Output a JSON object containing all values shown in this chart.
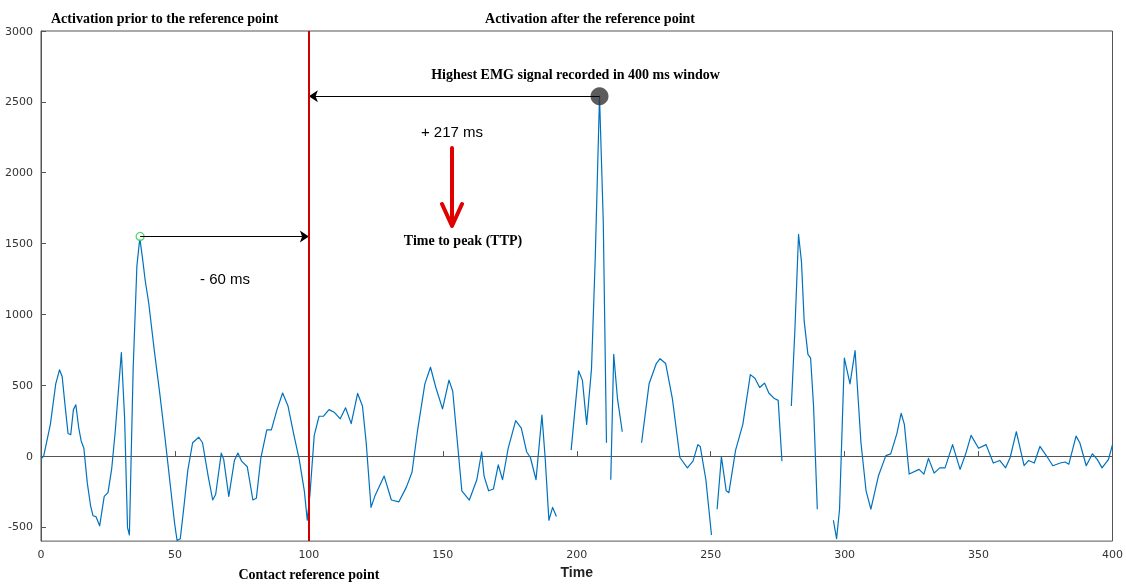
{
  "chart_data": {
    "type": "line",
    "xlabel": "Time",
    "xlim": [
      0,
      400
    ],
    "xticks": [
      0,
      50,
      100,
      150,
      200,
      250,
      300,
      350,
      400
    ],
    "ylim": [
      -600,
      3000
    ],
    "yticks": [
      -500,
      0,
      500,
      1000,
      1500,
      2000,
      2500,
      3000
    ],
    "grid": false,
    "series": [
      {
        "color": "#0072bd",
        "marker": "none",
        "x": [
          0,
          1,
          3.5,
          5.5,
          6.9,
          7.9,
          9,
          10.1,
          11.1,
          12.1,
          13,
          14.1,
          15,
          16,
          17.3,
          18.5,
          19.4,
          20.5,
          21.9,
          23.6,
          25,
          26.4,
          27.7,
          30,
          31.2,
          32.3,
          33,
          34.4,
          35.8,
          36.9,
          37.9,
          38.9,
          40.2,
          42.3,
          44.4,
          46.5,
          48.5,
          49.9,
          50.8,
          52,
          53.4,
          54.8,
          56.6,
          58.9,
          60.3,
          62.4,
          64.1,
          65.2,
          67.3,
          68.2,
          70.1,
          72.2,
          73.5,
          74.9,
          77,
          79.1,
          80.4,
          82.1,
          84.3,
          86,
          88.1,
          90.2,
          92.2,
          94.3,
          96.4,
          98.3,
          99.4,
          100.4,
          102,
          103.8,
          105.4,
          107.5,
          109.6,
          111.7,
          113.7,
          115.8,
          118.2,
          120,
          121.4,
          123.2,
          124.6,
          128.1,
          130.8,
          133.6,
          136.4,
          138.5,
          140.5,
          143.3,
          145.4,
          147.4,
          149.9,
          152.3,
          153.7,
          157.1,
          159.9,
          162.7,
          164.5,
          165.4,
          167.1,
          168.9,
          170.7,
          172.3,
          174.4,
          177.2,
          179.3,
          181.3,
          182.7,
          184.8,
          187,
          188.2,
          189.6,
          191,
          192.4,
          195.2,
          197.9,
          200.7,
          202.1,
          203.7,
          205.5,
          206.9,
          208.5,
          209.9,
          211.1,
          211.9,
          212.7,
          213.8,
          215.2,
          217,
          218,
          222.8,
          224.2,
          227,
          229.7,
          231.1,
          233.2,
          235.7,
          238.5,
          241.3,
          243.4,
          245.2,
          246.1,
          248.2,
          250.3,
          251.2,
          252.4,
          254,
          255.8,
          256.8,
          259.3,
          262,
          264.8,
          266.5,
          268.3,
          270.1,
          271.7,
          273.8,
          275.2,
          276.6,
          277.7,
          278.9,
          280.1,
          281.4,
          282.8,
          283.9,
          284.9,
          286.3,
          287.3,
          288.4,
          289.8,
          291.1,
          294.6,
          295.8,
          297,
          298.1,
          299.9,
          302,
          303.9,
          306.1,
          308,
          309.8,
          312.6,
          315.4,
          317.2,
          319.5,
          321.1,
          322.3,
          324.1,
          327.8,
          329.6,
          331.3,
          333.4,
          335.5,
          337.5,
          340.3,
          343.1,
          345.2,
          347.2,
          350,
          352.8,
          355.5,
          357.9,
          360.1,
          361.8,
          364.1,
          367,
          368.7,
          370.8,
          372.9,
          375.6,
          377.7,
          380.5,
          382.3,
          383.7,
          386.4,
          387.8,
          390.2,
          392.5,
          394.3,
          396.1,
          398.5,
          400
        ],
        "values": [
          -20,
          0,
          224,
          510,
          609,
          562,
          354,
          159,
          151,
          328,
          362,
          198,
          107,
          55,
          -193,
          -349,
          -421,
          -427,
          -492,
          -284,
          -258,
          -88,
          172,
          731,
          276,
          -505,
          -557,
          614,
          1343,
          1538,
          1395,
          1239,
          1082,
          744,
          432,
          94,
          -245,
          -479,
          -596,
          -583,
          -349,
          -101,
          94,
          133,
          94,
          -141,
          -310,
          -271,
          21,
          -23,
          -284,
          -31,
          21,
          -36,
          -75,
          -310,
          -297,
          -10,
          185,
          185,
          328,
          445,
          354,
          159,
          -23,
          -245,
          -453,
          -271,
          146,
          281,
          281,
          328,
          307,
          263,
          341,
          229,
          442,
          354,
          94,
          -362,
          -284,
          -141,
          -310,
          -323,
          -219,
          -114,
          172,
          510,
          627,
          484,
          333,
          536,
          458,
          -245,
          -310,
          -167,
          29,
          -141,
          -245,
          -232,
          -62,
          -167,
          55,
          250,
          198,
          29,
          -10,
          -167,
          289,
          -10,
          -453,
          -362,
          -427,
          null,
          42,
          601,
          536,
          224,
          614,
          1395,
          2540,
          1655,
          94,
          null,
          -167,
          718,
          406,
          172,
          null,
          null,
          94,
          510,
          653,
          687,
          653,
          406,
          -10,
          -83,
          -36,
          81,
          68,
          -167,
          -557,
          null,
          -375,
          -5,
          -245,
          -258,
          42,
          224,
          575,
          549,
          484,
          515,
          445,
          406,
          393,
          -36,
          null,
          null,
          354,
          874,
          1564,
          1369,
          952,
          718,
          692,
          354,
          -375,
          null,
          null,
          -453,
          -583,
          -375,
          692,
          510,
          744,
          94,
          -245,
          -375,
          -141,
          3,
          16,
          159,
          302,
          224,
          -127,
          -94,
          -127,
          -16,
          -120,
          -83,
          -83,
          81,
          -94,
          16,
          146,
          55,
          81,
          -49,
          -31,
          -83,
          -10,
          172,
          -68,
          -31,
          -49,
          68,
          -5,
          -68,
          -49,
          -42,
          -57,
          141,
          94,
          -68,
          16,
          -23,
          -83,
          -23,
          81
        ]
      },
      {
        "type": "scatter",
        "color": "#2ecc40",
        "marker": "circle",
        "x": [
          37
        ],
        "values": [
          1550
        ]
      },
      {
        "type": "scatter",
        "color": "#333333",
        "marker": "circle",
        "x": [
          208.5
        ],
        "values": [
          2540
        ]
      }
    ],
    "ref_lines": [
      {
        "axis": "x",
        "value": 100,
        "label": "Contact reference point",
        "color": "#d00000",
        "line_style": "solid"
      }
    ],
    "annotations": [
      "Activation prior to the reference point",
      "Activation after the reference point",
      {
        "text": "Highest EMG signal recorded in 400 ms window",
        "x": 208.5,
        "y": 2540
      },
      "+ 217 ms",
      "Time to peak (TTP)",
      "- 60 ms"
    ]
  }
}
